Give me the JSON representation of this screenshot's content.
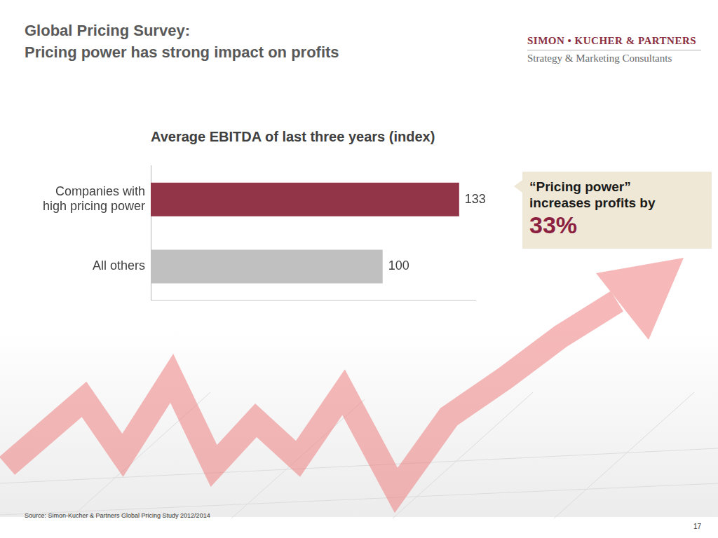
{
  "header": {
    "title": [
      "Global Pricing Survey:",
      "Pricing power has strong impact on profits"
    ],
    "logo": {
      "name": "SIMON • KUCHER & PARTNERS",
      "tagline": "Strategy & Marketing Consultants"
    }
  },
  "chart_data": {
    "type": "bar",
    "orientation": "horizontal",
    "title": "Average EBITDA of last three years (index)",
    "categories": [
      "Companies with high pricing power",
      "All others"
    ],
    "values": [
      133,
      100
    ],
    "colors": [
      "#933548",
      "#c0c0c0"
    ],
    "xlim": [
      0,
      140
    ],
    "grid": false,
    "data_labels": true,
    "tick_labels": "y"
  },
  "callout": {
    "lines": [
      "“Pricing power”",
      "increases profits by"
    ],
    "value": "33%"
  },
  "footer": {
    "source": "Source: Simon-Kucher & Partners Global Pricing Study 2012/2014",
    "page": "17"
  }
}
